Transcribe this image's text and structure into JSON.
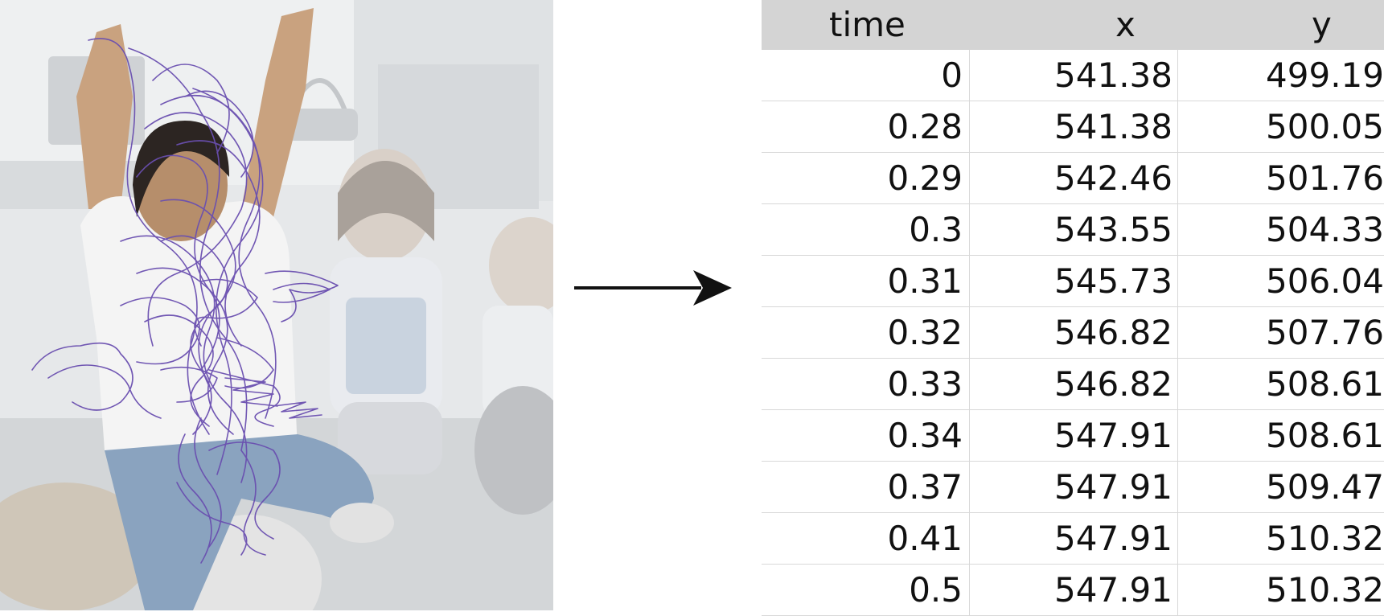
{
  "table": {
    "headers": {
      "time": "time",
      "x": "x",
      "y": "y"
    },
    "rows": [
      {
        "time": "0",
        "x": "541.38",
        "y": "499.19"
      },
      {
        "time": "0.28",
        "x": "541.38",
        "y": "500.05"
      },
      {
        "time": "0.29",
        "x": "542.46",
        "y": "501.76"
      },
      {
        "time": "0.3",
        "x": "543.55",
        "y": "504.33"
      },
      {
        "time": "0.31",
        "x": "545.73",
        "y": "506.04"
      },
      {
        "time": "0.32",
        "x": "546.82",
        "y": "507.76"
      },
      {
        "time": "0.33",
        "x": "546.82",
        "y": "508.61"
      },
      {
        "time": "0.34",
        "x": "547.91",
        "y": "508.61"
      },
      {
        "time": "0.37",
        "x": "547.91",
        "y": "509.47"
      },
      {
        "time": "0.41",
        "x": "547.91",
        "y": "510.32"
      },
      {
        "time": "0.5",
        "x": "547.91",
        "y": "510.32"
      }
    ]
  },
  "colors": {
    "trajectory": "#6a4fb0",
    "header_bg": "#d4d4d4",
    "grid": "#d8d8d8"
  }
}
